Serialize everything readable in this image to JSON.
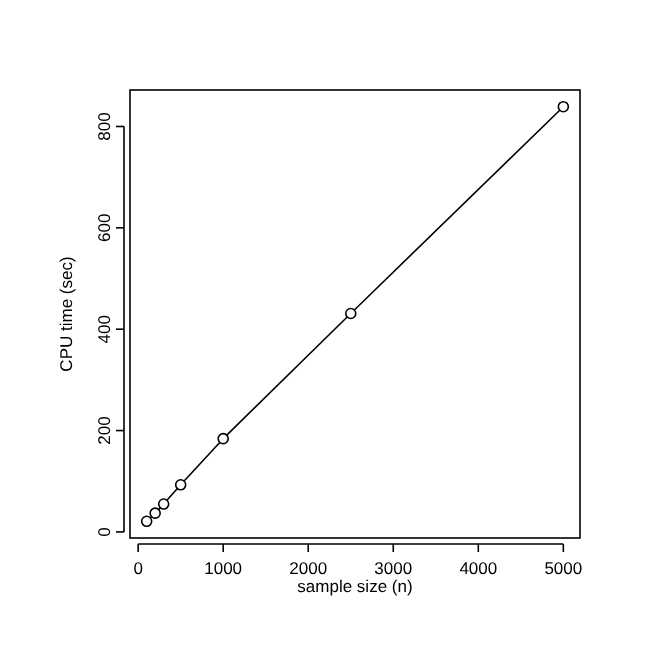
{
  "chart_data": {
    "type": "line",
    "xlabel": "sample size (n)",
    "ylabel": "CPU time (sec)",
    "x": [
      100,
      200,
      300,
      500,
      1000,
      2500,
      5000
    ],
    "series": [
      {
        "color": "#000000",
        "values": [
          21,
          37,
          55,
          93,
          184,
          431,
          839
        ]
      }
    ],
    "marker": "circle",
    "line_style": "solid",
    "xlim": [
      -96,
      5196
    ],
    "ylim": [
      -12,
      872
    ],
    "xticks": [
      0,
      1000,
      2000,
      3000,
      4000,
      5000
    ],
    "yticks": [
      0,
      200,
      400,
      600,
      800
    ],
    "grid": false
  }
}
